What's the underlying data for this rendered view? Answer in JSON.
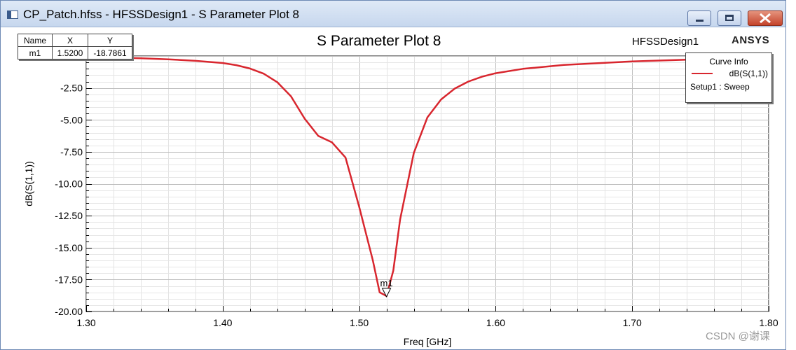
{
  "window": {
    "title": "CP_Patch.hfss - HFSSDesign1 - S Parameter Plot 8",
    "buttons": {
      "minimize": "minimize",
      "maximize": "maximize",
      "close": "close"
    }
  },
  "header": {
    "plot_title": "S Parameter Plot 8",
    "design_name": "HFSSDesign1",
    "brand": "ANSYS"
  },
  "marker_table": {
    "headers": [
      "Name",
      "X",
      "Y"
    ],
    "rows": [
      [
        "m1",
        "1.5200",
        "-18.7861"
      ]
    ]
  },
  "curve_info": {
    "title": "Curve Info",
    "entries": [
      {
        "name": "dB(S(1,1))",
        "setup": "Setup1 : Sweep",
        "color": "#d8262e"
      }
    ]
  },
  "watermark": "CSDN @谢课",
  "chart_data": {
    "type": "line",
    "title": "S Parameter Plot 8",
    "xlabel": "Freq [GHz]",
    "ylabel": "dB(S(1,1))",
    "xlim": [
      1.3,
      1.8
    ],
    "ylim": [
      -20.0,
      0.0
    ],
    "xticks": [
      "1.30",
      "1.40",
      "1.50",
      "1.60",
      "1.70",
      "1.80"
    ],
    "yticks": [
      "-2.50",
      "-5.00",
      "-7.50",
      "-10.00",
      "-12.50",
      "-15.00",
      "-17.50",
      "-20.00"
    ],
    "grid": true,
    "legend_position": "top-right",
    "series": [
      {
        "name": "dB(S(1,1))",
        "color": "#d8262e",
        "x": [
          1.3,
          1.32,
          1.34,
          1.36,
          1.38,
          1.4,
          1.41,
          1.42,
          1.43,
          1.44,
          1.45,
          1.46,
          1.47,
          1.48,
          1.49,
          1.5,
          1.51,
          1.515,
          1.52,
          1.525,
          1.53,
          1.54,
          1.55,
          1.56,
          1.57,
          1.58,
          1.59,
          1.6,
          1.62,
          1.65,
          1.7,
          1.75,
          1.8
        ],
        "y": [
          -0.08,
          -0.12,
          -0.18,
          -0.26,
          -0.38,
          -0.55,
          -0.72,
          -0.98,
          -1.38,
          -2.05,
          -3.15,
          -4.9,
          -6.25,
          -6.75,
          -7.95,
          -11.8,
          -16.0,
          -18.5,
          -18.79,
          -16.8,
          -12.8,
          -7.6,
          -4.8,
          -3.4,
          -2.55,
          -2.0,
          -1.62,
          -1.35,
          -1.0,
          -0.7,
          -0.42,
          -0.25,
          -0.12
        ]
      }
    ],
    "markers": [
      {
        "name": "m1",
        "x": 1.52,
        "y": -18.7861
      }
    ]
  }
}
